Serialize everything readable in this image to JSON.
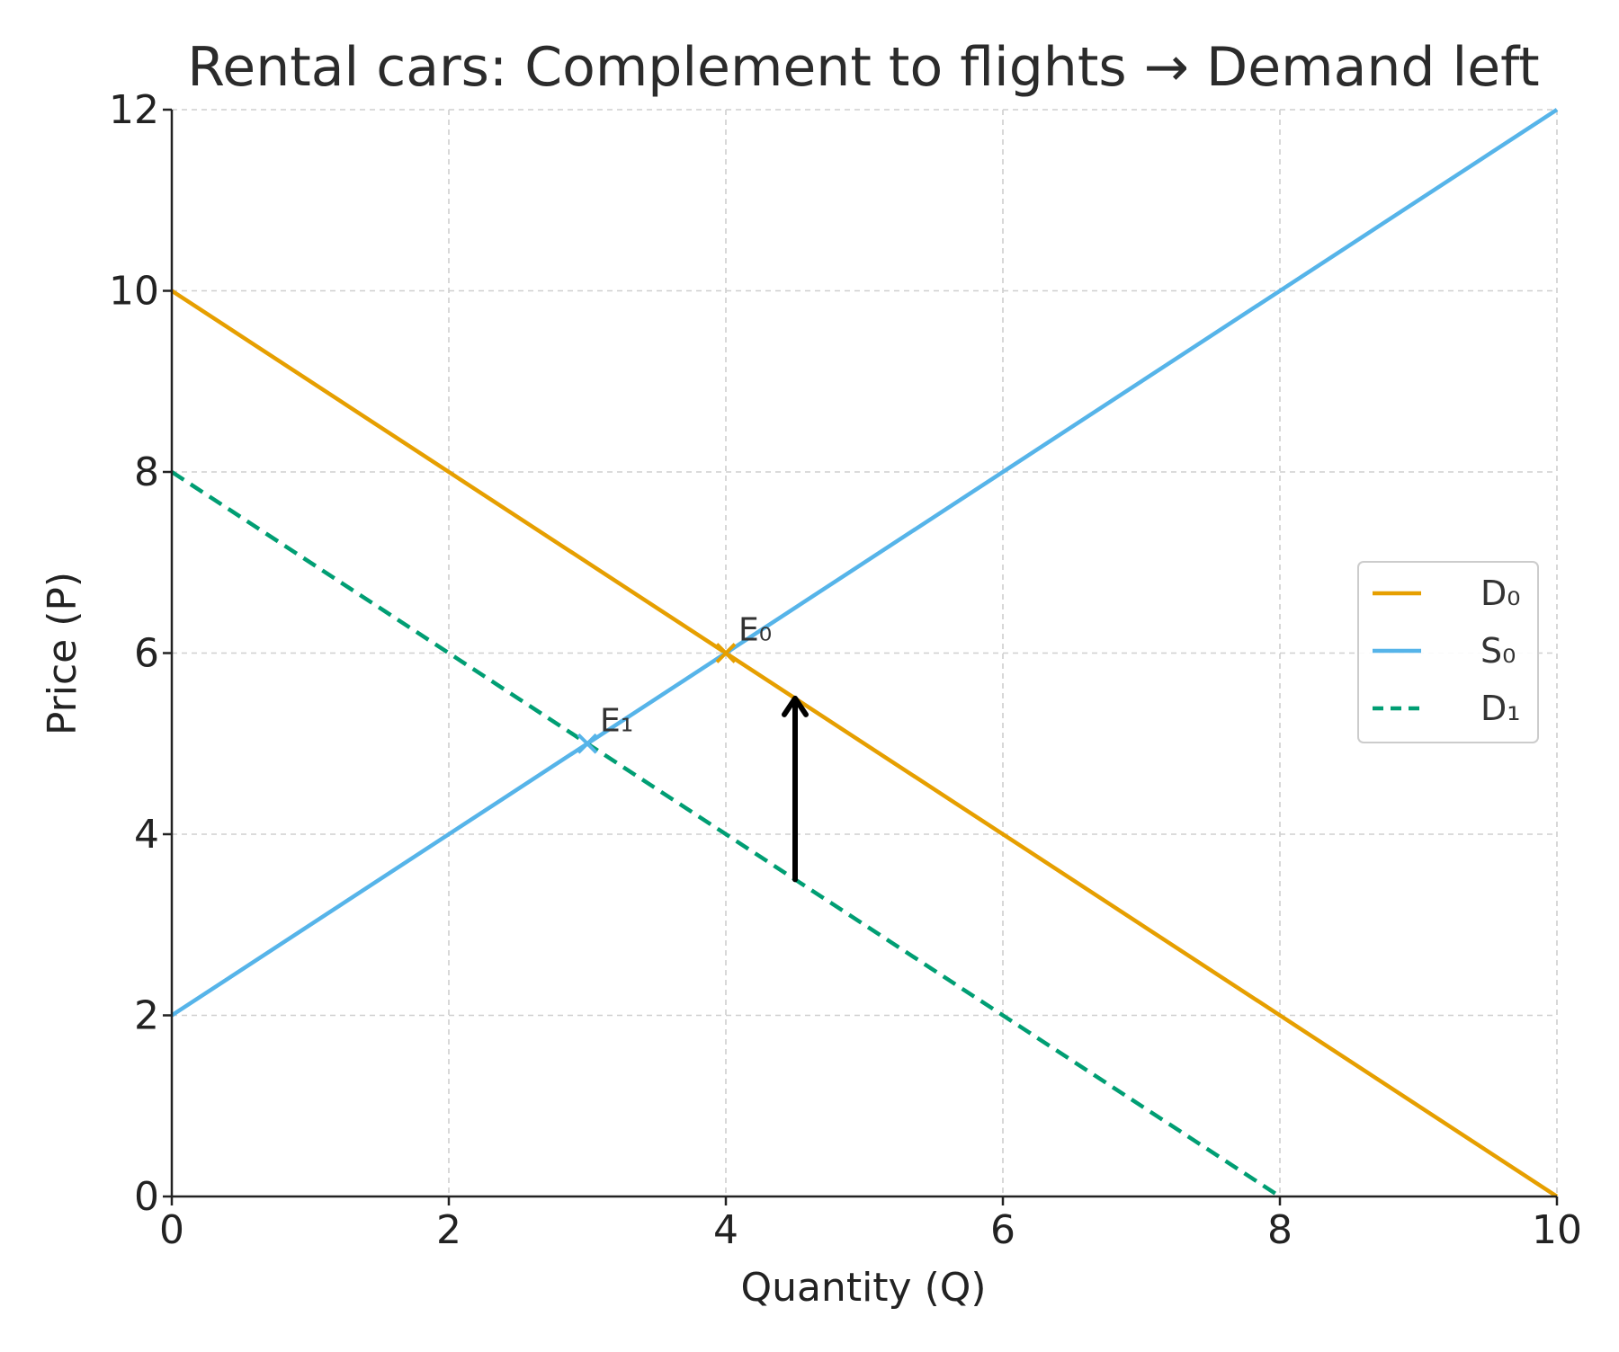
{
  "chart_data": {
    "type": "line",
    "title": "Rental cars: Complement to flights → Demand left",
    "xlabel": "Quantity (Q)",
    "ylabel": "Price (P)",
    "xlim": [
      0,
      10
    ],
    "ylim": [
      0,
      12
    ],
    "x_ticks": [
      0,
      2,
      4,
      6,
      8,
      10
    ],
    "y_ticks": [
      0,
      2,
      4,
      6,
      8,
      10,
      12
    ],
    "x_tick_labels": [
      "0",
      "2",
      "4",
      "6",
      "8",
      "10"
    ],
    "y_tick_labels": [
      "0",
      "2",
      "4",
      "6",
      "8",
      "10",
      "12"
    ],
    "grid": true,
    "legend_position": "center-right",
    "series": [
      {
        "name": "D₀",
        "color": "#E69F00",
        "style": "solid",
        "x": [
          0,
          10
        ],
        "y": [
          10,
          0
        ]
      },
      {
        "name": "S₀",
        "color": "#56B4E9",
        "style": "solid",
        "x": [
          0,
          10
        ],
        "y": [
          2,
          12
        ]
      },
      {
        "name": "D₁",
        "color": "#009E73",
        "style": "dashed",
        "x": [
          0,
          8
        ],
        "y": [
          8,
          0
        ]
      }
    ],
    "points": [
      {
        "label": "E₀",
        "x": 4,
        "y": 6,
        "color": "#E69F00"
      },
      {
        "label": "E₁",
        "x": 3,
        "y": 5,
        "color": "#56B4E9"
      }
    ],
    "arrow": {
      "x": 4.5,
      "y_from": 3.5,
      "y_to": 5.5,
      "color": "#000000"
    }
  }
}
